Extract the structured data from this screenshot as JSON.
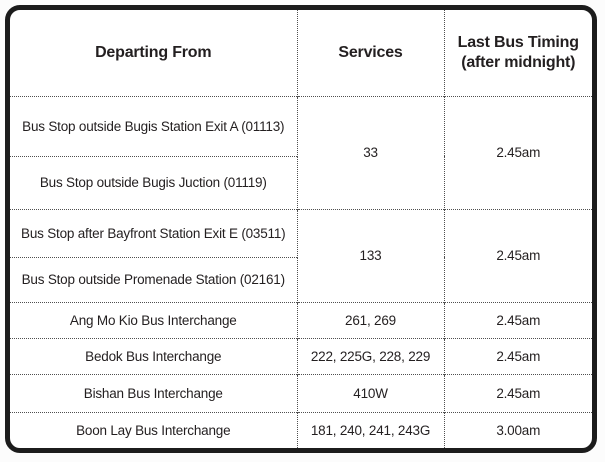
{
  "table": {
    "headers": [
      "Departing From",
      "Services",
      "Last Bus Timing\n(after midnight)"
    ],
    "groups": [
      {
        "stops": [
          "Bus Stop outside Bugis Station Exit A (01113)",
          "Bus Stop outside Bugis Juction (01119)"
        ],
        "services": "33",
        "last_bus": "2.45am"
      },
      {
        "stops": [
          "Bus Stop after Bayfront Station Exit E (03511)",
          "Bus Stop outside Promenade Station (02161)"
        ],
        "services": "133",
        "last_bus": "2.45am"
      }
    ],
    "rows": [
      {
        "stop": "Ang Mo Kio Bus Interchange",
        "services": "261, 269",
        "last_bus": "2.45am"
      },
      {
        "stop": "Bedok Bus Interchange",
        "services": "222, 225G, 228, 229",
        "last_bus": "2.45am"
      },
      {
        "stop": "Bishan Bus Interchange",
        "services": "410W",
        "last_bus": "2.45am"
      },
      {
        "stop": "Boon Lay Bus Interchange",
        "services": "181, 240, 241, 243G",
        "last_bus": "3.00am"
      }
    ],
    "colors": {
      "outer_border": "#1c1c1c",
      "divider_dots": "#4f4f4f",
      "text": "#231f20",
      "background": "#ffffff"
    }
  },
  "chart_data": {
    "type": "table",
    "title": "",
    "columns": [
      "Departing From",
      "Services",
      "Last Bus Timing (after midnight)"
    ],
    "rows": [
      [
        "Bus Stop outside Bugis Station Exit A (01113)",
        "33",
        "2.45am"
      ],
      [
        "Bus Stop outside Bugis Juction (01119)",
        "33",
        "2.45am"
      ],
      [
        "Bus Stop after Bayfront Station Exit E (03511)",
        "133",
        "2.45am"
      ],
      [
        "Bus Stop outside Promenade Station (02161)",
        "133",
        "2.45am"
      ],
      [
        "Ang Mo Kio Bus Interchange",
        "261, 269",
        "2.45am"
      ],
      [
        "Bedok Bus Interchange",
        "222, 225G, 228, 229",
        "2.45am"
      ],
      [
        "Bishan Bus Interchange",
        "410W",
        "2.45am"
      ],
      [
        "Boon Lay Bus Interchange",
        "181, 240, 241, 243G",
        "3.00am"
      ]
    ],
    "layout_hints": {
      "merged_cells": "Services and Last Bus Timing cells are vertically merged across the two Bugis stops (33 / 2.45am) and across the Bayfront + Promenade stops (133 / 2.45am)",
      "outer_border": "thick black rounded rectangle",
      "inner_dividers": "fine dotted lines",
      "alignment": "all cells centered"
    }
  }
}
